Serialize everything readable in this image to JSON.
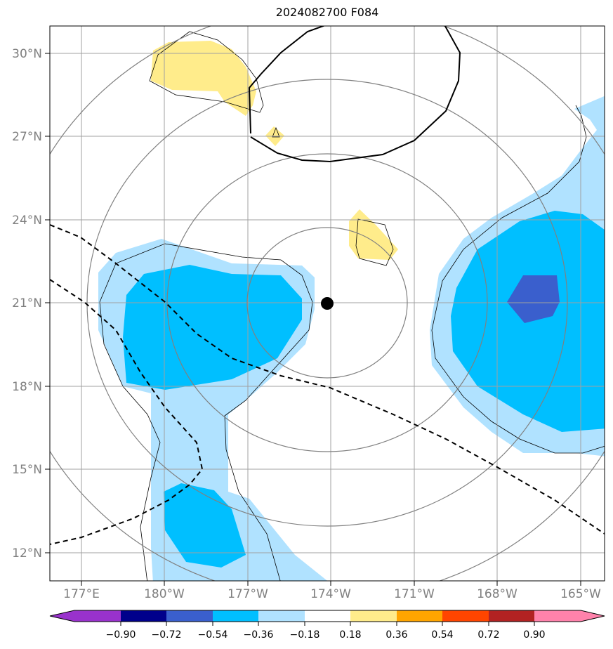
{
  "title": "2024082700 F084",
  "lat_labels": [
    "30°N",
    "27°N",
    "24°N",
    "21°N",
    "18°N",
    "15°N",
    "12°N"
  ],
  "lon_labels": [
    "177°E",
    "180°W",
    "177°W",
    "174°W",
    "171°W",
    "168°W",
    "165°W"
  ],
  "colorbar": {
    "labels": [
      "−0.90",
      "−0.72",
      "−0.54",
      "−0.36",
      "−0.18",
      "0.18",
      "0.36",
      "0.54",
      "0.72",
      "0.90"
    ],
    "colors": [
      "#9932CC",
      "#00008B",
      "#3A5FCD",
      "#00BFFF",
      "#B0E2FF",
      "#FFFFFF",
      "#FFEC8B",
      "#FFA500",
      "#FF4500",
      "#B22222",
      "#FF82AB"
    ]
  },
  "colors": {
    "light_blue": "#B0E2FF",
    "deep_sky_blue": "#00BFFF",
    "royal_blue": "#3A5FCD",
    "light_yellow": "#FFEC8B",
    "grid": "#A0A0A0",
    "range_rings": "#808080"
  },
  "storm_center": {
    "lon": -174.0,
    "lat": 21.0
  }
}
